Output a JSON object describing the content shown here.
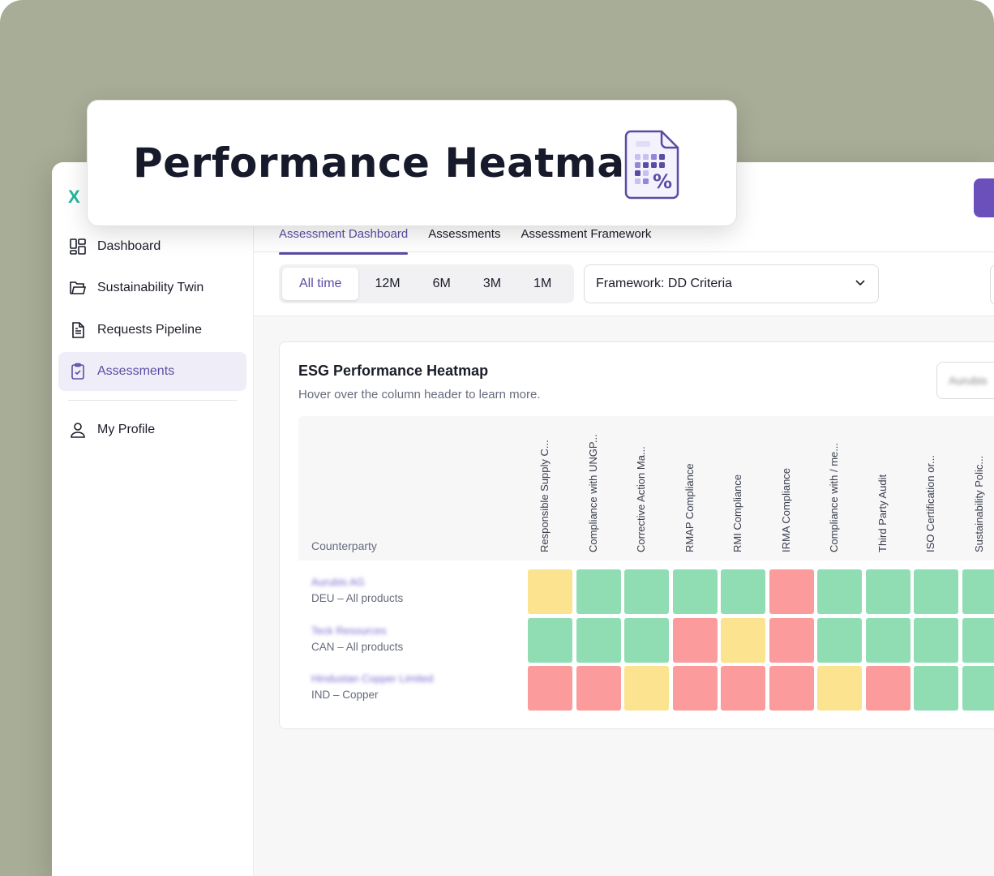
{
  "title_card": {
    "heading": "Performance Heatmap",
    "icon": "heatmap-report-icon"
  },
  "sidebar": {
    "logo": "X",
    "items": [
      {
        "label": "Dashboard",
        "icon": "dashboard-icon",
        "active": false
      },
      {
        "label": "Sustainability Twin",
        "icon": "folder-icon",
        "active": false
      },
      {
        "label": "Requests Pipeline",
        "icon": "document-icon",
        "active": false
      },
      {
        "label": "Assessments",
        "icon": "clipboard-check-icon",
        "active": true
      },
      {
        "label": "My Profile",
        "icon": "user-icon",
        "active": false
      }
    ]
  },
  "tabs": [
    {
      "label": "Assessment Dashboard",
      "active": true
    },
    {
      "label": "Assessments",
      "active": false
    },
    {
      "label": "Assessment Framework",
      "active": false
    }
  ],
  "periods": [
    {
      "label": "All time",
      "active": true
    },
    {
      "label": "12M",
      "active": false
    },
    {
      "label": "6M",
      "active": false
    },
    {
      "label": "3M",
      "active": false
    },
    {
      "label": "1M",
      "active": false
    }
  ],
  "framework_select": {
    "value": "Framework: DD Criteria"
  },
  "card": {
    "title": "ESG Performance Heatmap",
    "subtitle": "Hover over the column header to learn more.",
    "select_value": "Aurubis"
  },
  "table": {
    "counterparty_header": "Counterparty",
    "columns": [
      "Responsible Supply C...",
      "Compliance with UNGP...",
      "Corrective Action Ma...",
      "RMAP Compliance",
      "RMI Compliance",
      "IRMA Compliance",
      "Compliance with / me...",
      "Third Party Audit",
      "ISO Certification or...",
      "Sustainability Polic..."
    ],
    "rows": [
      {
        "name": "Aurubis AG",
        "sub": "DEU – All products",
        "cells": [
          "medium",
          "good",
          "good",
          "good",
          "good",
          "poor",
          "good",
          "good",
          "good",
          "good"
        ]
      },
      {
        "name": "Teck Resources",
        "sub": "CAN – All products",
        "cells": [
          "good",
          "good",
          "good",
          "poor",
          "medium",
          "poor",
          "good",
          "good",
          "good",
          "good"
        ]
      },
      {
        "name": "Hindustan Copper Limited",
        "sub": "IND – Copper",
        "cells": [
          "poor",
          "poor",
          "medium",
          "poor",
          "poor",
          "poor",
          "medium",
          "poor",
          "good",
          "good"
        ]
      }
    ]
  },
  "colors": {
    "good": "#90ddb4",
    "medium": "#fbe38f",
    "poor": "#fb9b9b",
    "accent": "#5c4ba3",
    "background": "#a8ad97"
  }
}
